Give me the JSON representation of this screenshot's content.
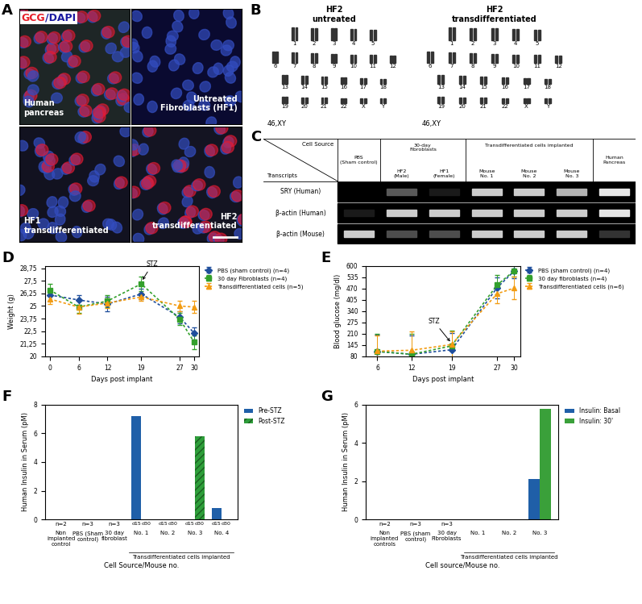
{
  "figure": {
    "panel_A": {
      "panel": "A",
      "stain_label": [
        "GCG",
        "/DAPI"
      ],
      "images": [
        "Human\npancreas",
        "Untreated\nFibroblasts (HF1)",
        "HF1\ntransdifferentiated",
        "HF2\ntransdifferentiated"
      ]
    },
    "panel_B": {
      "panel": "B",
      "karyotypes": [
        {
          "title": "HF2\nuntreated",
          "karyotype": "46,XY"
        },
        {
          "title": "HF2\ntransdifferentiated",
          "karyotype": "46,XY"
        }
      ],
      "chromosome_rows": [
        [
          "1",
          "2",
          "3",
          "4",
          "5"
        ],
        [
          "6",
          "7",
          "8",
          "9",
          "10",
          "11",
          "12"
        ],
        [
          "13",
          "14",
          "15",
          "16",
          "17",
          "18"
        ],
        [
          "19",
          "20",
          "21",
          "22",
          "X",
          "Y"
        ]
      ]
    },
    "panel_C": {
      "panel": "C",
      "header_columns_label": "Cell Source",
      "header_rows_label": "Transcripts",
      "columns": [
        {
          "label": "PBS\n(Sham control)",
          "group": null
        },
        {
          "label": "HF2\n(Male)",
          "group": "30-day\nFibroblasts"
        },
        {
          "label": "HF1\n(Female)",
          "group": "30-day\nFibroblasts"
        },
        {
          "label": "Mouse\nNo. 1",
          "group": "Transdifferentiated cells implanted"
        },
        {
          "label": "Mouse\nNo. 2",
          "group": "Transdifferentiated cells implanted"
        },
        {
          "label": "Mouse\nNo. 3",
          "group": "Transdifferentiated cells implanted"
        },
        {
          "label": "Human\nPancreas",
          "group": null
        }
      ],
      "rows": [
        {
          "label": "SRY (Human)",
          "bands": [
            0,
            0.35,
            0.1,
            0.8,
            0.8,
            0.7,
            0.9
          ]
        },
        {
          "label": "β-actin (Human)",
          "bands": [
            0.1,
            0.8,
            0.8,
            0.8,
            0.8,
            0.8,
            0.9
          ]
        },
        {
          "label": "β-actin (Mouse)",
          "bands": [
            0.8,
            0.3,
            0.3,
            0.8,
            0.8,
            0.8,
            0.2
          ]
        }
      ]
    }
  },
  "chart_data": [
    {
      "panel": "D",
      "type": "line",
      "x": [
        0,
        6,
        12,
        19,
        27,
        30
      ],
      "xlim": [
        -1,
        31
      ],
      "xticks": [
        0,
        6,
        12,
        19,
        27,
        30
      ],
      "ylim": [
        20,
        29
      ],
      "yticks": [
        20,
        {
          "value": 21.25,
          "label": "21,25"
        },
        {
          "value": 22.5,
          "label": "22,5"
        },
        {
          "value": 23.75,
          "label": "23,75"
        },
        25,
        {
          "value": 26.25,
          "label": "26,25"
        },
        {
          "value": 27.5,
          "label": "27,5"
        },
        {
          "value": 28.75,
          "label": "28,75"
        }
      ],
      "xlabel": "Days post implant",
      "ylabel": "Weight (g)",
      "grid": false,
      "legend": "upper left",
      "series": [
        {
          "name": "PBS (sham control) (n=4)",
          "color": "#1f4e9c",
          "marker": "diamond",
          "line_style": "dotted",
          "values": [
            26.1,
            25.6,
            25.2,
            26.2,
            23.9,
            22.3
          ],
          "errors": [
            0.6,
            0.5,
            0.7,
            0.5,
            0.6,
            0.6
          ]
        },
        {
          "name": "30 day Fibroblasts (n=4)",
          "color": "#33a02c",
          "marker": "square",
          "line_style": "dotted",
          "values": [
            26.6,
            24.9,
            25.5,
            27.2,
            23.7,
            21.4
          ],
          "errors": [
            0.6,
            0.6,
            0.6,
            0.7,
            0.6,
            0.7
          ]
        },
        {
          "name": "Transdifferentiated cells (n=5)",
          "color": "#f39c12",
          "marker": "triangle",
          "line_style": "dotted",
          "values": [
            25.7,
            24.9,
            25.3,
            25.9,
            25.0,
            24.9
          ],
          "errors": [
            0.5,
            0.7,
            0.5,
            0.4,
            0.5,
            0.6
          ]
        }
      ],
      "annotations": [
        {
          "text": "STZ",
          "x": 19,
          "y": 27.4
        }
      ]
    },
    {
      "panel": "E",
      "type": "line",
      "x": [
        6,
        12,
        19,
        27,
        30
      ],
      "xlim": [
        4,
        31
      ],
      "xticks": [
        6,
        12,
        19,
        27,
        30
      ],
      "ylim": [
        80,
        600
      ],
      "yticks": [
        80,
        145,
        210,
        275,
        340,
        405,
        470,
        535,
        600
      ],
      "xlabel": "Days post implant",
      "ylabel": "Blood glucose (mg/dl)",
      "grid": false,
      "legend": "upper left",
      "series": [
        {
          "name": "PBS (sham control) (n=4)",
          "color": "#1f4e9c",
          "marker": "diamond",
          "line_style": "dotted",
          "values": [
            108,
            92,
            118,
            475,
            570
          ],
          "errors": [
            95,
            110,
            95,
            60,
            40
          ]
        },
        {
          "name": "30 day fibroblasts (n=4)",
          "color": "#33a02c",
          "marker": "square",
          "line_style": "dotted",
          "values": [
            108,
            92,
            140,
            490,
            572
          ],
          "errors": [
            100,
            115,
            90,
            55,
            35
          ]
        },
        {
          "name": "Transdifferentiated cells (n=6)",
          "color": "#f39c12",
          "marker": "triangle",
          "line_style": "dotted",
          "values": [
            110,
            115,
            148,
            440,
            472
          ],
          "errors": [
            90,
            110,
            75,
            55,
            65
          ]
        }
      ],
      "annotations": [
        {
          "text": "STZ",
          "x": 19,
          "y": 155
        }
      ]
    },
    {
      "panel": "F",
      "type": "bar",
      "categories": [
        "Non\nimplanted\ncontrol",
        "PBS (Sham\ncontrol)",
        "30 day\nfibroblast",
        "No. 1",
        "No. 2",
        "No. 3",
        "No. 4"
      ],
      "n_labels": [
        "n=2",
        "n=3",
        "n=3",
        null,
        null,
        null,
        null
      ],
      "bar_labels": [
        "d15",
        "d30"
      ],
      "category_groups": [
        null,
        null,
        null,
        "Transdifferentiated cells implanted",
        "Transdifferentiated cells implanted",
        "Transdifferentiated cells implanted",
        "Transdifferentiated cells implanted"
      ],
      "xlabel": "Cell Source/Mouse no.",
      "ylabel": "Human Insulin in Serum (pM)",
      "ylim": [
        0,
        8
      ],
      "yticks": [
        0,
        2,
        4,
        6,
        8
      ],
      "grid": false,
      "legend": "upper left",
      "series": [
        {
          "name": "Pre-STZ",
          "color": "#1f5fa8",
          "values": [
            null,
            null,
            null,
            7.2,
            null,
            null,
            0.8
          ]
        },
        {
          "name": "Post-STZ",
          "color": "#2e9e3a",
          "values": [
            null,
            null,
            null,
            null,
            null,
            5.8,
            null
          ]
        }
      ]
    },
    {
      "panel": "G",
      "type": "bar",
      "categories": [
        "Non\nimplanted\ncontrols",
        "PBS (sham\ncontrol)",
        "30 day\nFibroblasts",
        "No. 1",
        "No. 2",
        "No. 3"
      ],
      "n_labels": [
        "n=2",
        "n=3",
        "n=3",
        null,
        null,
        null
      ],
      "category_groups": [
        null,
        null,
        null,
        "Transdifferentiated cells implanted",
        "Transdifferentiated cells implanted",
        "Transdifferentiated cells implanted"
      ],
      "xlabel": "Cell source/Mouse no.",
      "ylabel": "Human Insulin in Serum (pM)",
      "ylim": [
        0,
        6
      ],
      "yticks": [
        0,
        2,
        4,
        6
      ],
      "grid": false,
      "legend": "upper left",
      "series": [
        {
          "name": "Insulin: Basal",
          "color": "#1f5fa8",
          "values": [
            null,
            null,
            null,
            null,
            null,
            2.1
          ]
        },
        {
          "name": "Insulin: 30'",
          "color": "#3aa03a",
          "values": [
            null,
            null,
            null,
            null,
            null,
            5.8
          ]
        }
      ]
    }
  ]
}
